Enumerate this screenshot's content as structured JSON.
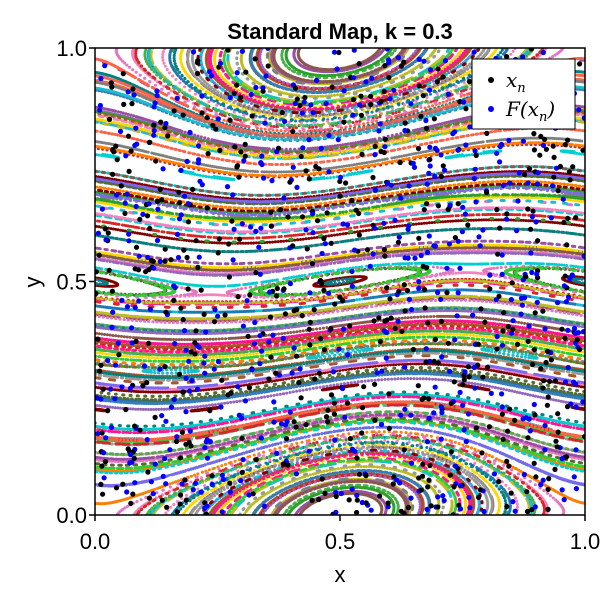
{
  "chart_data": {
    "type": "scatter",
    "title": "Standard Map, k = 0.3",
    "xlabel": "x",
    "ylabel": "y",
    "xlim": [
      0.0,
      1.0
    ],
    "ylim": [
      0.0,
      1.0
    ],
    "x_ticks": [
      0.0,
      0.5,
      1.0
    ],
    "y_ticks": [
      0.0,
      0.5,
      1.0
    ],
    "x_tick_labels": [
      "0.0",
      "0.5",
      "1.0"
    ],
    "y_tick_labels": [
      "0.0",
      "0.5",
      "1.0"
    ],
    "k": 0.3,
    "grid": false,
    "legend_position": "top-right",
    "series": [
      {
        "name": "x_n",
        "color": "#000000",
        "marker": "circle"
      },
      {
        "name": "F(x_n)",
        "color": "#0000ff",
        "marker": "circle"
      }
    ],
    "background_orbit_palette": [
      "#e41a1c",
      "#377eb8",
      "#4daf4a",
      "#984ea3",
      "#ff7f00",
      "#a65628",
      "#f781bf",
      "#999999",
      "#17becf",
      "#bcbd22",
      "#1f77b4",
      "#2ca02c",
      "#d62728",
      "#9467bd",
      "#8c564b",
      "#e377c2",
      "#7f7f7f",
      "#00ced1",
      "#ff1493",
      "#32cd32",
      "#ffd700",
      "#800000",
      "#008080",
      "#7b68ee",
      "#556b2f",
      "#ff6347"
    ],
    "legend": [
      {
        "label": "x",
        "sub": "n",
        "color": "#000000"
      },
      {
        "label": "F(x",
        "sub": "n",
        "suffix": ")",
        "color": "#0000ff"
      }
    ]
  }
}
